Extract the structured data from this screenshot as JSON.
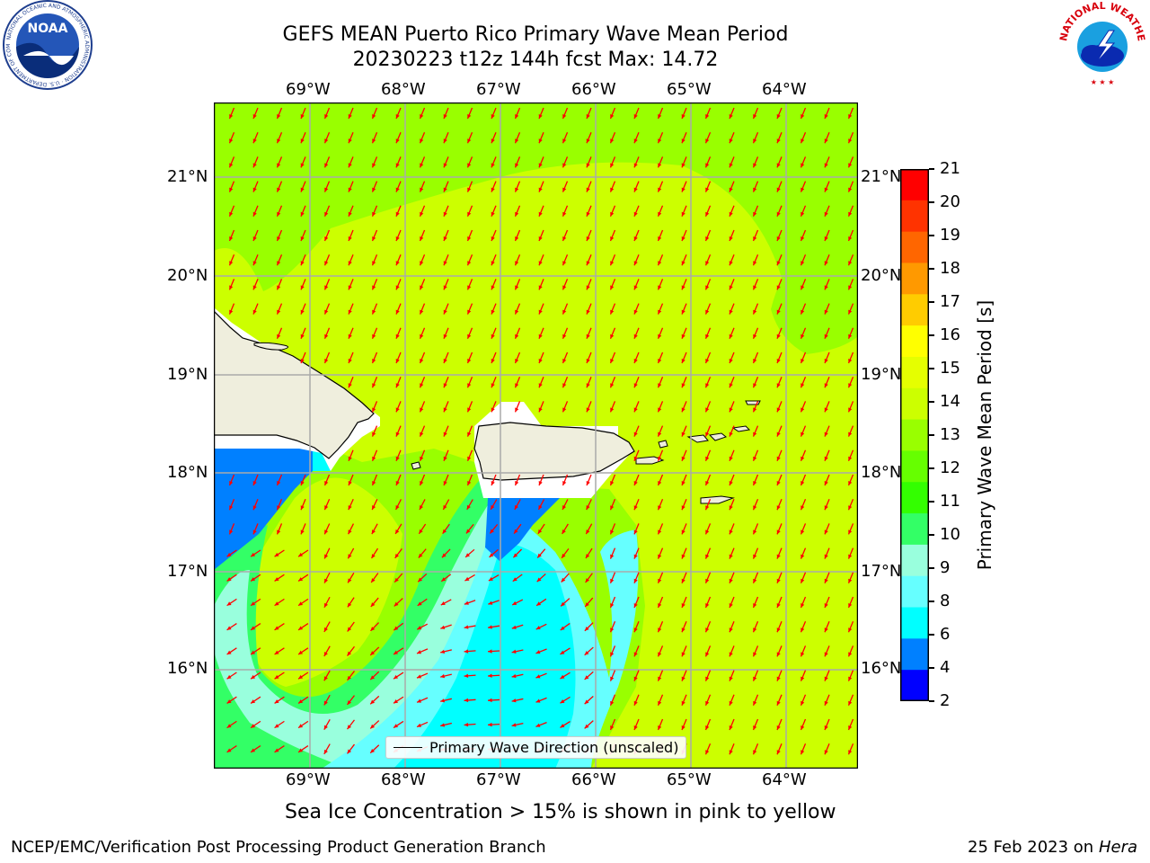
{
  "title": {
    "line1": "GEFS MEAN Puerto Rico Primary Wave Mean Period",
    "line2": "20230223 t12z 144h fcst   Max: 14.72"
  },
  "logos": {
    "left_name": "NOAA",
    "left_ring": "NATIONAL OCEANIC AND ATMOSPHERIC ADMINISTRATION · U.S. DEPARTMENT OF COMMERCE",
    "right_ring": "NATIONAL WEATHER SERVICE"
  },
  "axes": {
    "lon_labels": [
      "69°W",
      "68°W",
      "67°W",
      "66°W",
      "65°W",
      "64°W"
    ],
    "lat_labels": [
      "21°N",
      "20°N",
      "19°N",
      "18°N",
      "17°N",
      "16°N"
    ]
  },
  "colorbar": {
    "label": "Primary Wave Mean Period [s]",
    "ticks": [
      "21",
      "20",
      "19",
      "18",
      "17",
      "16",
      "15",
      "14",
      "13",
      "12",
      "11",
      "10",
      "9",
      "8",
      "6",
      "4",
      "2"
    ],
    "colors": [
      "#ff0000",
      "#ff3300",
      "#ff6600",
      "#ff9900",
      "#ffcc00",
      "#ffff00",
      "#e5ff00",
      "#ccff00",
      "#99ff00",
      "#66ff00",
      "#33ff00",
      "#33ff66",
      "#99ffdd",
      "#66ffff",
      "#00ffff",
      "#0080ff",
      "#0000ff"
    ]
  },
  "legend": {
    "label": "Primary Wave Direction (unscaled)"
  },
  "caption": "Sea Ice Concentration > 15% is shown in pink to yellow",
  "footer": {
    "left": "NCEP/EMC/Verification Post Processing Product Generation Branch",
    "right_prefix": "25 Feb 2023 on",
    "right_host": "Hera"
  },
  "colors": {
    "land": "#efeedd",
    "arrow": "#ff0000",
    "grid": "#aaaaaa",
    "field_main": "#ccff00",
    "field_green": "#99ff00"
  }
}
